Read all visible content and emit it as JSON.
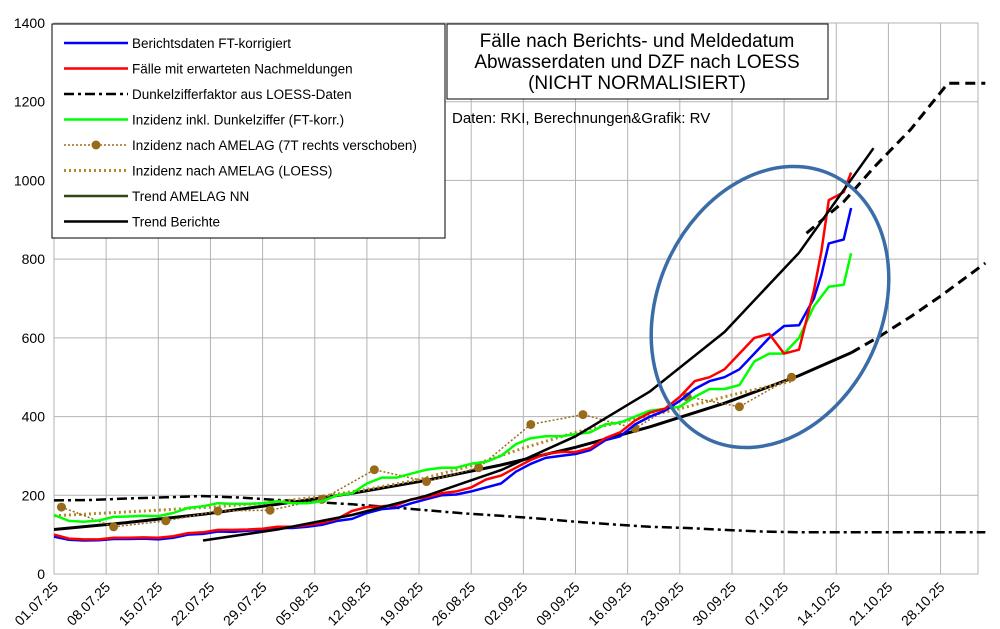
{
  "chart_data": {
    "type": "line",
    "title_lines": [
      "Fälle nach Berichts- und Meldedatum",
      "Abwasserdaten und DZF nach LOESS",
      "(NICHT NORMALISIERT)"
    ],
    "source": "Daten: RKI, Berechnungen&Grafik: RV",
    "ylim": [
      0,
      1400
    ],
    "y_ticks": [
      "0",
      "200",
      "400",
      "600",
      "800",
      "1000",
      "1200",
      "1400"
    ],
    "x_ticks": [
      "01.07.25",
      "08.07.25",
      "15.07.25",
      "22.07.25",
      "29.07.25",
      "05.08.25",
      "12.08.25",
      "19.08.25",
      "26.08.25",
      "02.09.25",
      "09.09.25",
      "16.09.25",
      "23.09.25",
      "30.09.25",
      "07.10.25",
      "14.10.25",
      "21.10.25",
      "28.10.25"
    ],
    "x_range_days": [
      0,
      125
    ],
    "grid": true,
    "legend_position": "top-left",
    "series": [
      {
        "name": "Berichtsdaten FT-korrigiert",
        "color": "#0000ff",
        "style": "solid",
        "x": [
          0,
          2,
          4,
          6,
          8,
          10,
          12,
          14,
          16,
          18,
          20,
          22,
          24,
          26,
          28,
          30,
          32,
          34,
          36,
          38,
          40,
          42,
          44,
          46,
          48,
          50,
          52,
          54,
          56,
          58,
          60,
          62,
          64,
          66,
          68,
          70,
          72,
          74,
          76,
          78,
          80,
          82,
          84,
          86,
          88,
          90,
          92,
          94,
          96,
          98,
          100,
          102,
          103,
          104,
          105,
          106,
          107
        ],
        "y": [
          95,
          87,
          85,
          86,
          89,
          89,
          90,
          88,
          92,
          100,
          102,
          108,
          107,
          110,
          112,
          117,
          117,
          120,
          125,
          135,
          140,
          155,
          165,
          168,
          180,
          190,
          200,
          202,
          210,
          220,
          230,
          260,
          280,
          295,
          300,
          305,
          315,
          340,
          350,
          380,
          400,
          415,
          440,
          470,
          490,
          500,
          520,
          560,
          600,
          630,
          632,
          700,
          760,
          840,
          845,
          850,
          930
        ]
      },
      {
        "name": "Fälle mit erwarteten Nachmeldungen",
        "color": "#ff0000",
        "style": "solid",
        "x": [
          0,
          2,
          4,
          6,
          8,
          10,
          12,
          14,
          16,
          18,
          20,
          22,
          24,
          26,
          28,
          30,
          32,
          34,
          36,
          38,
          40,
          42,
          44,
          46,
          48,
          50,
          52,
          54,
          56,
          58,
          60,
          62,
          64,
          66,
          68,
          70,
          72,
          74,
          76,
          78,
          80,
          82,
          84,
          86,
          88,
          90,
          92,
          94,
          96,
          98,
          100,
          102,
          103,
          104,
          105,
          106,
          107
        ],
        "y": [
          100,
          90,
          88,
          88,
          92,
          92,
          93,
          92,
          96,
          104,
          106,
          112,
          112,
          113,
          115,
          120,
          120,
          124,
          130,
          140,
          160,
          170,
          172,
          175,
          190,
          195,
          205,
          210,
          220,
          240,
          250,
          270,
          290,
          305,
          310,
          310,
          320,
          345,
          360,
          390,
          410,
          420,
          450,
          490,
          500,
          520,
          560,
          600,
          610,
          560,
          570,
          720,
          820,
          950,
          960,
          970,
          1020
        ]
      },
      {
        "name": "Dunkelzifferfaktor aus LOESS-Daten",
        "color": "#000000",
        "style": "dashdot",
        "x": [
          0,
          5,
          10,
          15,
          20,
          25,
          30,
          35,
          40,
          45,
          50,
          55,
          60,
          65,
          70,
          75,
          80,
          85,
          90,
          95,
          100,
          105,
          110,
          115,
          120,
          125
        ],
        "y": [
          187,
          188,
          192,
          195,
          198,
          194,
          188,
          183,
          177,
          170,
          162,
          154,
          148,
          141,
          133,
          126,
          120,
          117,
          112,
          108,
          106,
          106,
          106,
          106,
          106,
          106
        ]
      },
      {
        "name": "Inzidenz inkl. Dunkelziffer (FT-korr.)",
        "color": "#00ff00",
        "style": "solid",
        "x": [
          0,
          2,
          4,
          6,
          8,
          10,
          12,
          14,
          16,
          18,
          20,
          22,
          24,
          26,
          28,
          30,
          32,
          34,
          36,
          38,
          40,
          42,
          44,
          46,
          48,
          50,
          52,
          54,
          56,
          58,
          60,
          62,
          64,
          66,
          68,
          70,
          72,
          74,
          76,
          78,
          80,
          82,
          84,
          86,
          88,
          90,
          92,
          94,
          96,
          98,
          100,
          102,
          104,
          106,
          107
        ],
        "y": [
          150,
          135,
          133,
          136,
          145,
          146,
          148,
          147,
          155,
          168,
          172,
          180,
          178,
          178,
          180,
          185,
          180,
          180,
          185,
          200,
          205,
          230,
          245,
          245,
          255,
          265,
          270,
          270,
          280,
          285,
          300,
          330,
          345,
          350,
          350,
          355,
          360,
          380,
          385,
          400,
          415,
          420,
          425,
          450,
          470,
          470,
          480,
          540,
          560,
          560,
          600,
          680,
          730,
          735,
          815
        ]
      },
      {
        "name": "Inzidenz nach AMELAG (7T rechts verschoben)",
        "color": "#9a6a1b",
        "style": "dotted-markers",
        "x": [
          1,
          8,
          15,
          22,
          29,
          36,
          43,
          50,
          57,
          64,
          71,
          78,
          85,
          92,
          99
        ],
        "y": [
          170,
          120,
          135,
          160,
          162,
          190,
          265,
          235,
          270,
          380,
          405,
          370,
          450,
          425,
          500
        ]
      },
      {
        "name": "Inzidenz nach AMELAG (LOESS)",
        "color": "#b8862b",
        "style": "dotted",
        "x": [
          0,
          7,
          14,
          21,
          28,
          35,
          42,
          49,
          56,
          63,
          70,
          77,
          84,
          91,
          99
        ],
        "y": [
          148,
          155,
          162,
          170,
          180,
          195,
          215,
          240,
          275,
          320,
          360,
          390,
          420,
          455,
          490
        ]
      },
      {
        "name": "Trend AMELAG NN",
        "color": "#2d4a10",
        "style": "solid",
        "x": [],
        "y": []
      },
      {
        "name": "Trend Berichte",
        "color": "#000000",
        "style": "solid",
        "x": [
          20,
          30,
          40,
          50,
          60,
          70,
          80,
          90,
          100,
          110
        ],
        "y": [
          85,
          113,
          150,
          199,
          264,
          350,
          464,
          615,
          816,
          1082
        ]
      }
    ],
    "trend_curves": [
      {
        "style": "solid",
        "color": "#000000",
        "x": [
          0,
          10,
          20,
          30,
          40,
          50,
          60,
          70,
          80,
          90,
          100,
          107
        ],
        "y": [
          113,
          131,
          152,
          177,
          205,
          238,
          277,
          322,
          374,
          434,
          504,
          562
        ]
      },
      {
        "style": "dashed",
        "color": "#000000",
        "x": [
          107,
          111,
          115,
          119,
          123,
          125
        ],
        "y": [
          562,
          606,
          654,
          706,
          762,
          790
        ]
      },
      {
        "style": "dashed",
        "color": "#000000",
        "x": [
          101,
          106,
          110,
          115,
          120,
          125
        ],
        "y": [
          866,
          946,
          1032,
          1130,
          1247,
          1247
        ]
      }
    ],
    "annotation_ellipse": {
      "color": "#3a6ca8"
    }
  }
}
